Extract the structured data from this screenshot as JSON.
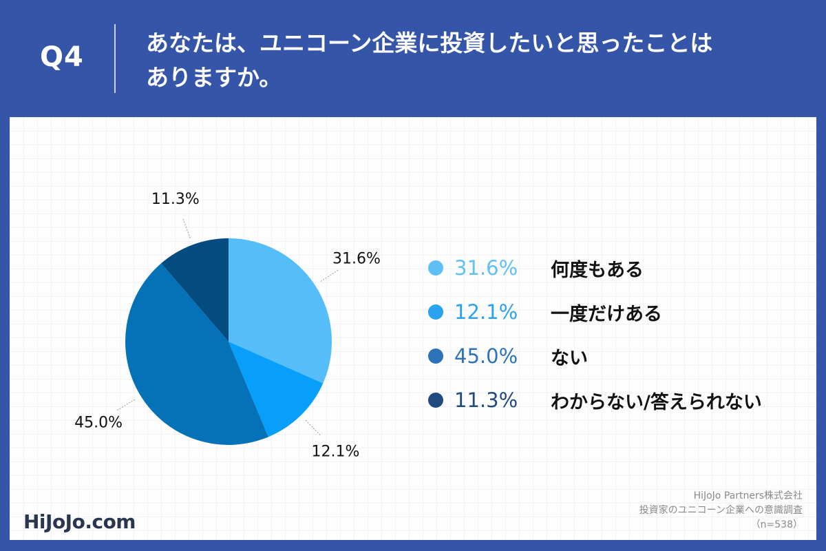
{
  "header": {
    "question_number": "Q4",
    "question_line1": "あなたは、ユニコーン企業に投資したいと思ったことは",
    "question_line2": "ありますか。"
  },
  "chart_data": {
    "type": "pie",
    "start": "12 o'clock, clockwise",
    "slices": [
      {
        "label": "何度もある",
        "value": 31.6,
        "display": "31.6%",
        "color": "#55bdf7",
        "legend_color": "#5fc0f5"
      },
      {
        "label": "一度だけある",
        "value": 12.1,
        "display": "12.1%",
        "color": "#079ff9",
        "legend_color": "#2aa2f2"
      },
      {
        "label": "ない",
        "value": 45.0,
        "display": "45.0%",
        "color": "#0572b8",
        "legend_color": "#2c73b8"
      },
      {
        "label": "わからない/答えられない",
        "value": 11.3,
        "display": "11.3%",
        "color": "#044b80",
        "legend_color": "#1f4b80"
      }
    ]
  },
  "footer": {
    "logo": "HiJoJo.com",
    "source_company": "HiJoJo Partners株式会社",
    "source_survey": "投資家のユニコーン企業への意識調査",
    "sample": "（n=538）"
  }
}
